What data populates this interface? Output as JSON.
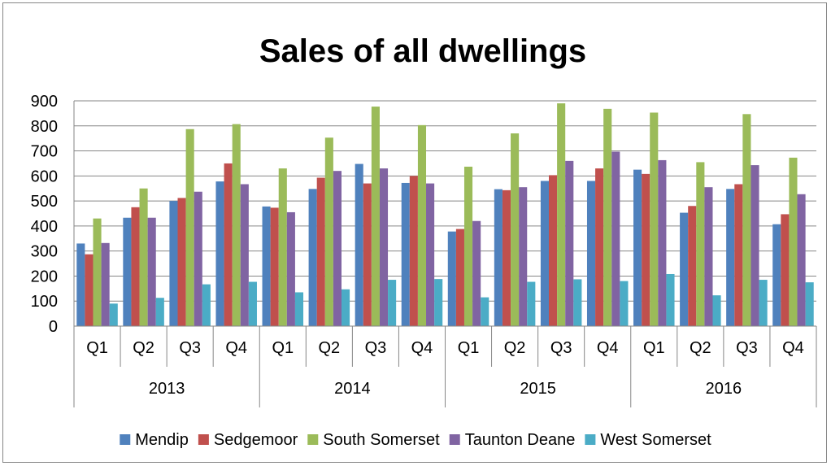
{
  "chart_data": {
    "type": "bar",
    "title": "Sales of all dwellings",
    "xlabel": "",
    "ylabel": "",
    "ylim": [
      0,
      900
    ],
    "yticks": [
      0,
      100,
      200,
      300,
      400,
      500,
      600,
      700,
      800,
      900
    ],
    "grid": true,
    "legend_position": "bottom",
    "category_groups": [
      {
        "label": "2013",
        "categories": [
          "Q1",
          "Q2",
          "Q3",
          "Q4"
        ]
      },
      {
        "label": "2014",
        "categories": [
          "Q1",
          "Q2",
          "Q3",
          "Q4"
        ]
      },
      {
        "label": "2015",
        "categories": [
          "Q1",
          "Q2",
          "Q3",
          "Q4"
        ]
      },
      {
        "label": "2016",
        "categories": [
          "Q1",
          "Q2",
          "Q3",
          "Q4"
        ]
      }
    ],
    "series": [
      {
        "name": "Mendip",
        "color": "#4F81BD",
        "values": [
          330,
          433,
          500,
          578,
          478,
          548,
          648,
          572,
          378,
          547,
          580,
          580,
          625,
          453,
          548,
          407
        ]
      },
      {
        "name": "Sedgemoor",
        "color": "#C0504D",
        "values": [
          287,
          475,
          512,
          650,
          473,
          593,
          570,
          600,
          388,
          543,
          603,
          630,
          608,
          480,
          567,
          447
        ]
      },
      {
        "name": "South Somerset",
        "color": "#9BBB59",
        "values": [
          430,
          550,
          787,
          807,
          630,
          753,
          877,
          803,
          637,
          770,
          890,
          868,
          853,
          655,
          847,
          673
        ]
      },
      {
        "name": "Taunton Deane",
        "color": "#8064A2",
        "values": [
          332,
          433,
          537,
          567,
          455,
          620,
          630,
          570,
          420,
          555,
          660,
          697,
          663,
          555,
          643,
          527
        ]
      },
      {
        "name": "West Somerset",
        "color": "#4BACC6",
        "values": [
          90,
          113,
          167,
          177,
          135,
          147,
          185,
          188,
          115,
          177,
          187,
          180,
          208,
          123,
          185,
          175
        ]
      }
    ]
  }
}
